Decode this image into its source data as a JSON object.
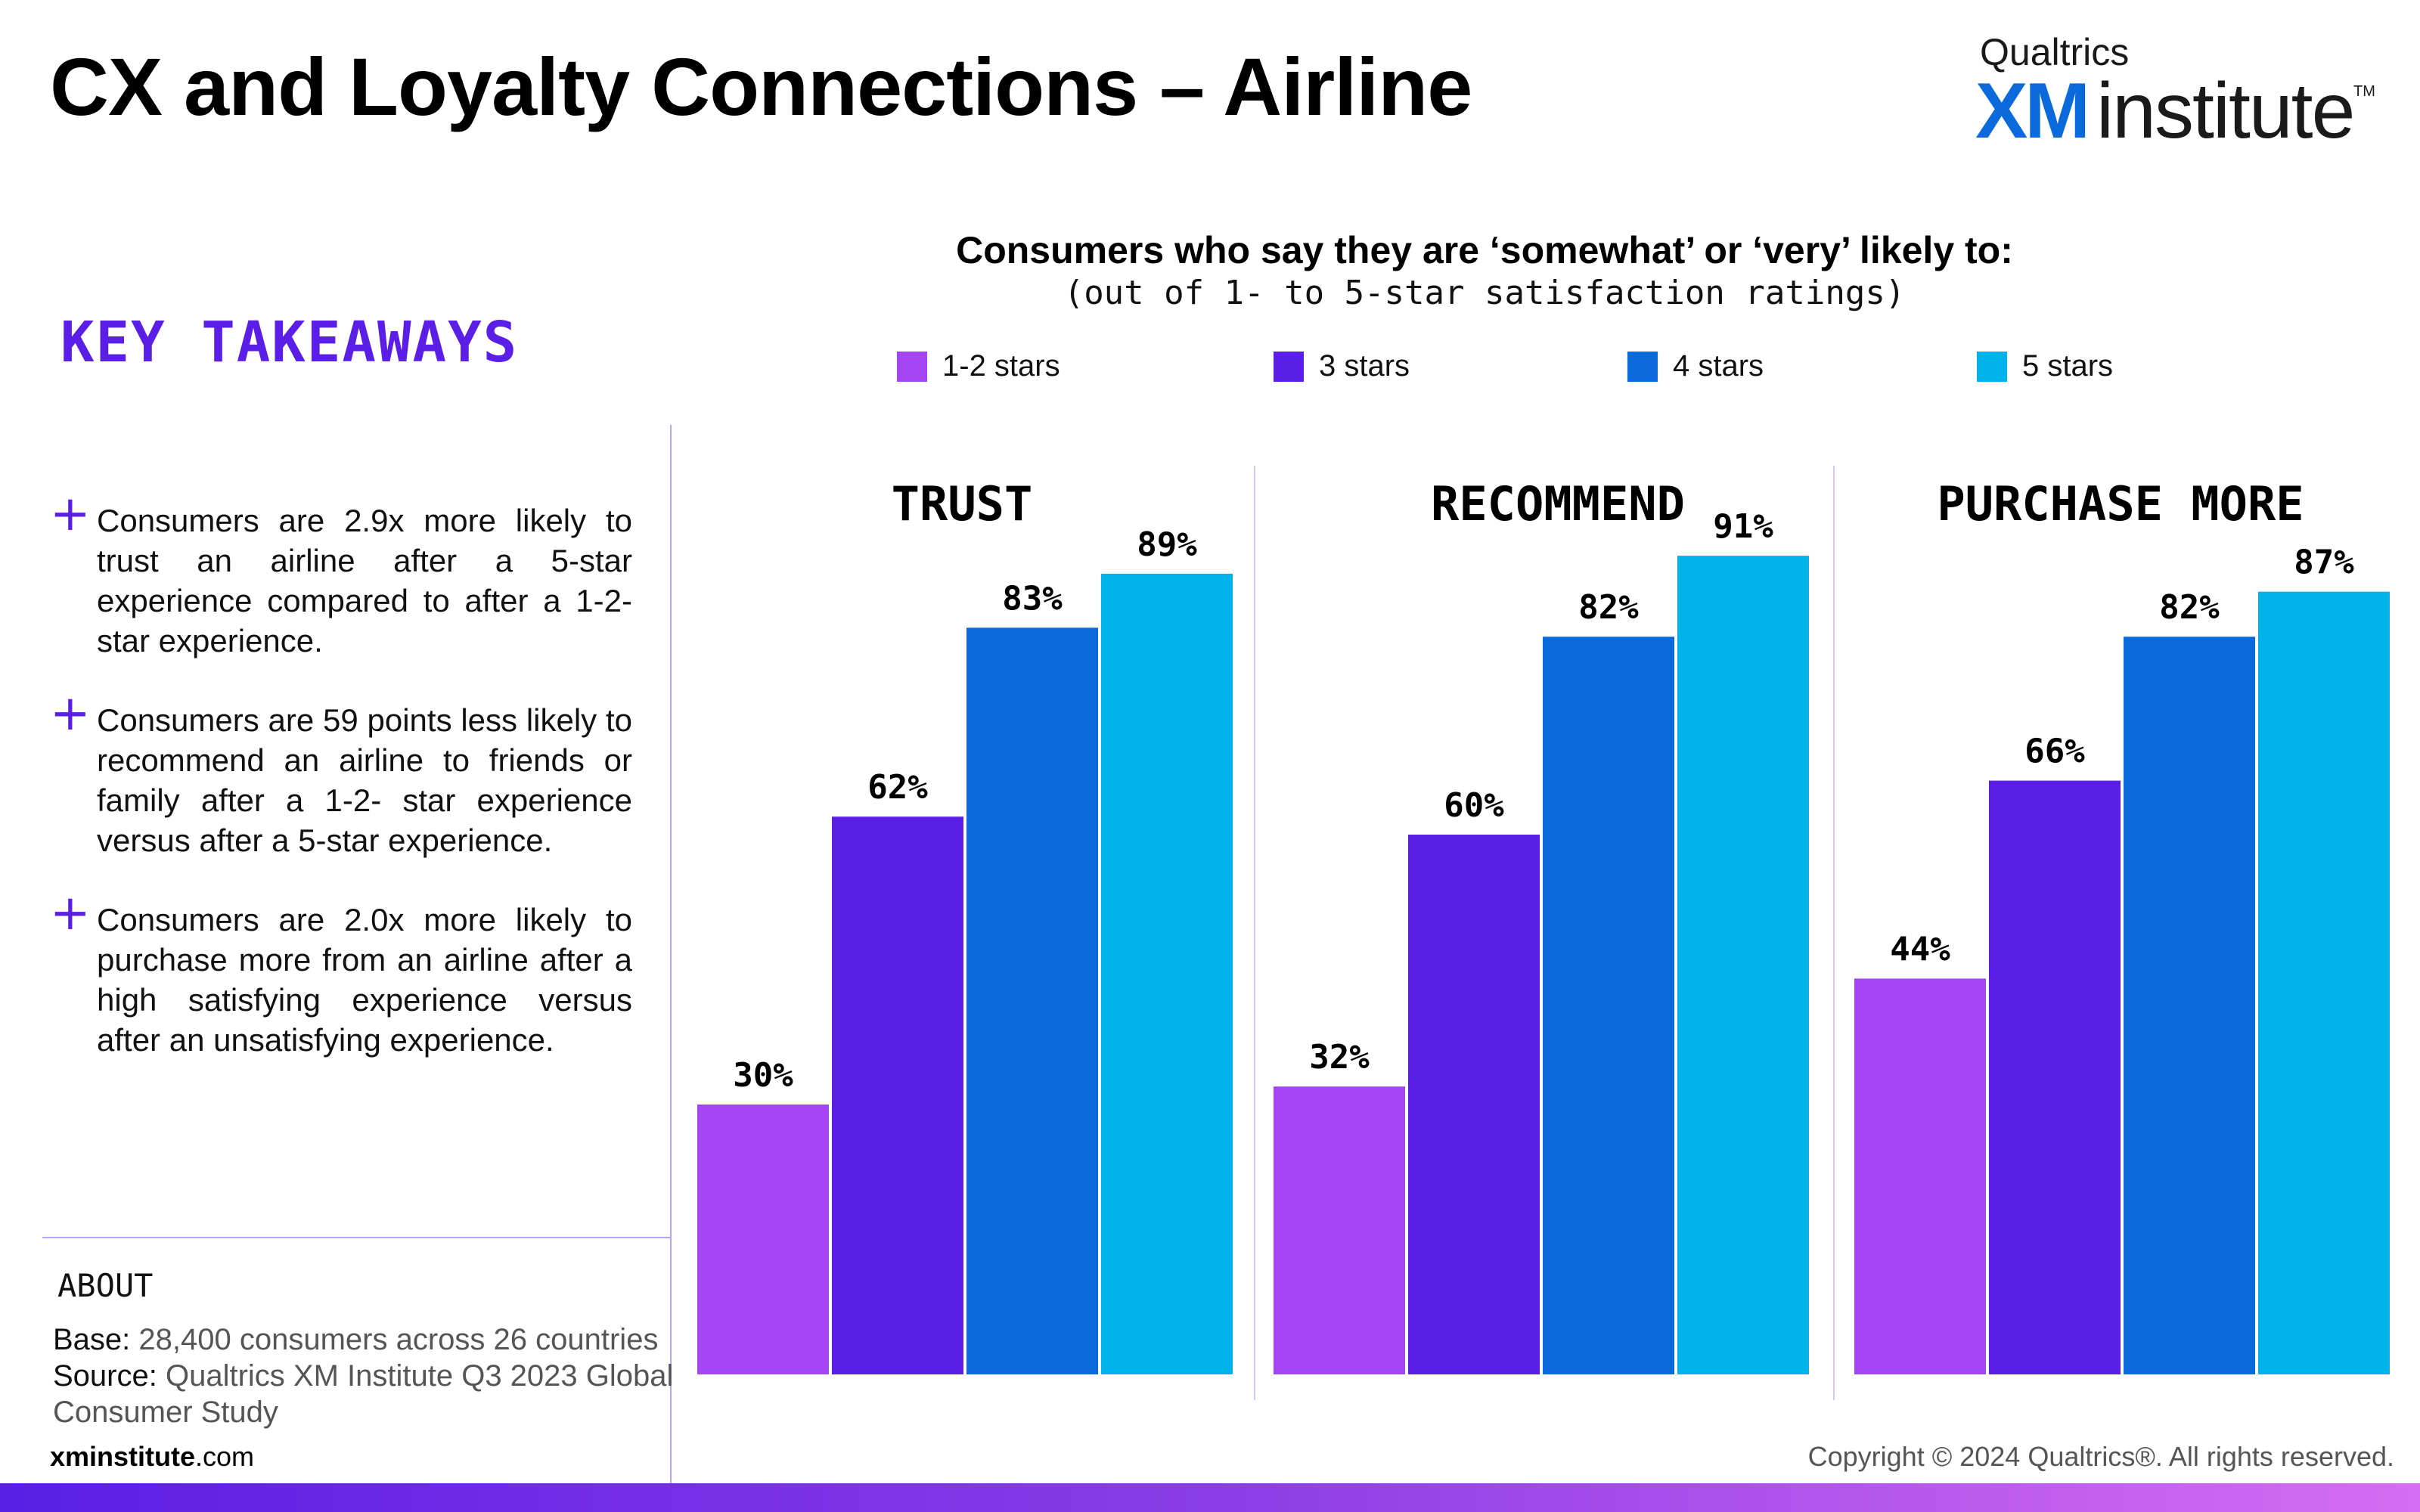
{
  "title": "CX and Loyalty Connections – Airline",
  "logo": {
    "top": "Qualtrics",
    "xm": "XM",
    "institute": "institute",
    "tm": "TM"
  },
  "key_takeaways": {
    "heading": "KEY TAKEAWAYS",
    "items": [
      "Consumers are 2.9x more likely to trust an airline after a 5-star experience compared to after a 1-2-star experience.",
      "Consumers are 59 points less likely to recommend an airline to friends or family after a 1-2- star experience versus after a 5-star experience.",
      "Consumers are 2.0x more likely to purchase more from an airline after a high satisfying experience versus after an unsatisfying experience."
    ]
  },
  "about": {
    "heading": "ABOUT",
    "base_label": "Base:",
    "base_value": " 28,400 consumers across 26 countries",
    "source_label": "Source:",
    "source_value_1": " Qualtrics XM Institute Q3 2023 Global",
    "source_value_2": "Consumer Study"
  },
  "footer": {
    "site_bold": "xminstitute",
    "site_rest": ".com",
    "copyright": "Copyright © 2024 Qualtrics®. All rights reserved."
  },
  "colors": {
    "accent": "#5a1ee6",
    "series": [
      "#a444f2",
      "#5a1ee6",
      "#0a6adc",
      "#00b2ea"
    ]
  },
  "chart_data": {
    "type": "bar",
    "title": "Consumers who say they are ‘somewhat’ or ‘very’ likely to:",
    "subtitle": "(out of 1- to 5-star satisfaction ratings)",
    "legend": [
      "1-2 stars",
      "3 stars",
      "4 stars",
      "5 stars"
    ],
    "legend_position": "top",
    "value_suffix": "%",
    "ylim": [
      0,
      100
    ],
    "grid": false,
    "panels": [
      {
        "name": "TRUST",
        "values": [
          30,
          62,
          83,
          89
        ]
      },
      {
        "name": "RECOMMEND",
        "values": [
          32,
          60,
          82,
          91
        ]
      },
      {
        "name": "PURCHASE MORE",
        "values": [
          44,
          66,
          82,
          87
        ]
      }
    ]
  }
}
